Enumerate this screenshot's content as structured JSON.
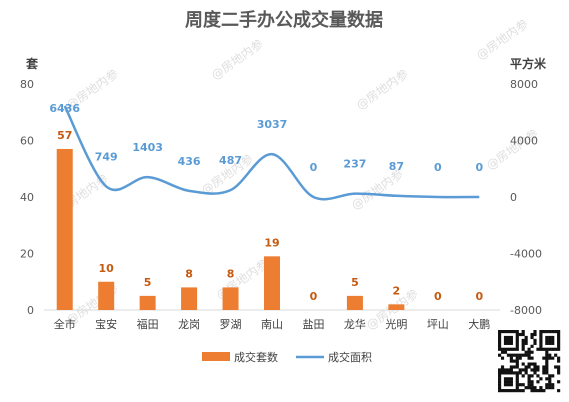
{
  "chart_data": {
    "type": "bar+line",
    "title": "周度二手办公成交量数据",
    "categories": [
      "全市",
      "宝安",
      "福田",
      "龙岗",
      "罗湖",
      "南山",
      "盐田",
      "龙华",
      "光明",
      "坪山",
      "大鹏"
    ],
    "series": [
      {
        "name": "成交套数",
        "type": "bar",
        "axis": "left",
        "color": "#ed7d31",
        "values": [
          57,
          10,
          5,
          8,
          8,
          19,
          0,
          5,
          2,
          0,
          0
        ]
      },
      {
        "name": "成交面积",
        "type": "line",
        "axis": "right",
        "color": "#5b9bd5",
        "smooth": true,
        "values": [
          6436,
          749,
          1403,
          436,
          487,
          3037,
          0,
          237,
          87,
          0,
          0
        ]
      }
    ],
    "y_left": {
      "label": "套",
      "ylim": [
        0,
        80
      ],
      "ticks": [
        0,
        20,
        40,
        60,
        80
      ]
    },
    "y_right": {
      "label": "平方米",
      "ylim": [
        -8000,
        8000
      ],
      "ticks": [
        -8000,
        -4000,
        0,
        4000,
        8000
      ]
    },
    "legend": "bottom",
    "grid": false
  },
  "watermark_text": "@房地内参"
}
